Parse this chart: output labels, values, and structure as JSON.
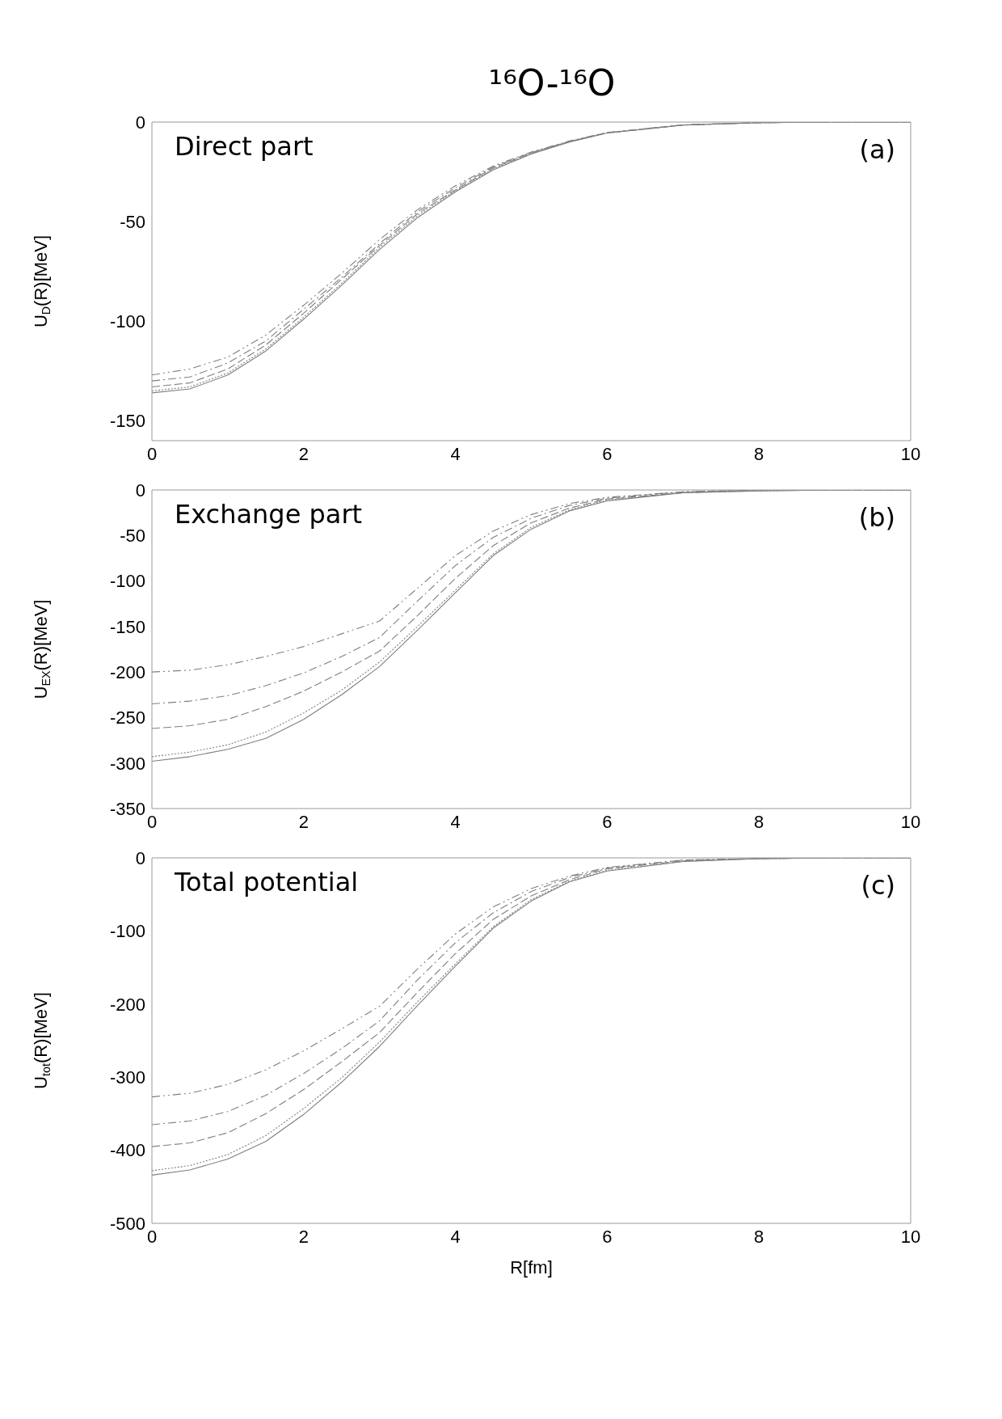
{
  "chart_data": [
    {
      "type": "line",
      "title": "¹⁶O-¹⁶O",
      "ylabel": "U$_{D}$(R)[MeV]",
      "annotations": [
        "Direct part",
        "(a)"
      ],
      "xlim": [
        0,
        10
      ],
      "xticks": [
        0,
        2,
        4,
        6,
        8,
        10
      ],
      "ylim": [
        -160,
        0
      ],
      "yticks": [
        0,
        -50,
        -100,
        -150
      ],
      "grid": false,
      "legend": false,
      "x": [
        0,
        0.5,
        1,
        1.5,
        2,
        2.5,
        3,
        3.5,
        4,
        4.5,
        5,
        5.5,
        6,
        7,
        8,
        9,
        10
      ],
      "series": [
        {
          "color": "#7f7f7f",
          "line_style": "solid",
          "values": [
            -136,
            -134,
            -127,
            -115,
            -99,
            -82,
            -64,
            -48,
            -35,
            -24,
            -16,
            -10,
            -5.5,
            -1.5,
            -0.3,
            0,
            0
          ]
        },
        {
          "color": "#7f7f7f",
          "line_style": "dotted",
          "values": [
            -135,
            -133,
            -126,
            -114,
            -98,
            -81,
            -63,
            -47,
            -34.5,
            -23.5,
            -15.8,
            -10,
            -5.5,
            -1.5,
            -0.3,
            0,
            0
          ]
        },
        {
          "color": "#7f7f7f",
          "line_style": "dashed",
          "values": [
            -133,
            -131,
            -124,
            -112,
            -96,
            -79,
            -62,
            -46,
            -34,
            -23,
            -15.5,
            -9.8,
            -5.4,
            -1.5,
            -0.3,
            0,
            0
          ]
        },
        {
          "color": "#7f7f7f",
          "line_style": "dashed",
          "values": [
            -130,
            -128,
            -121,
            -110,
            -94,
            -78,
            -61,
            -45,
            -33,
            -22.5,
            -15.3,
            -9.7,
            -5.3,
            -1.4,
            -0.3,
            0,
            0
          ]
        },
        {
          "color": "#7f7f7f",
          "line_style": "dashed",
          "values": [
            -127,
            -124,
            -118,
            -107,
            -92,
            -76,
            -59,
            -44,
            -32,
            -22,
            -15,
            -9.5,
            -5.2,
            -1.4,
            -0.3,
            0,
            0
          ]
        }
      ]
    },
    {
      "type": "line",
      "ylabel": "U$_{EX}$(R)[MeV]",
      "annotations": [
        "Exchange part",
        "(b)"
      ],
      "xlim": [
        0,
        10
      ],
      "xticks": [
        0,
        2,
        4,
        6,
        8,
        10
      ],
      "ylim": [
        -350,
        0
      ],
      "yticks": [
        0,
        -50,
        -100,
        -150,
        -200,
        -250,
        -300,
        -350
      ],
      "grid": false,
      "legend": false,
      "x": [
        0,
        0.5,
        1,
        1.5,
        2,
        2.5,
        3,
        3.5,
        4,
        4.5,
        5,
        5.5,
        6,
        7,
        8,
        9,
        10
      ],
      "series": [
        {
          "color": "#7f7f7f",
          "line_style": "solid",
          "values": [
            -298,
            -293,
            -285,
            -273,
            -252,
            -225,
            -194,
            -154,
            -113,
            -72,
            -43,
            -23,
            -12,
            -3,
            -1,
            0,
            0
          ]
        },
        {
          "color": "#7f7f7f",
          "line_style": "dotted",
          "values": [
            -293,
            -288,
            -280,
            -266,
            -245,
            -220,
            -189,
            -150,
            -110,
            -70,
            -41,
            -22,
            -11,
            -3,
            -1,
            0,
            0
          ]
        },
        {
          "color": "#7f7f7f",
          "line_style": "dashed",
          "values": [
            -262,
            -259,
            -252,
            -238,
            -221,
            -200,
            -177,
            -138,
            -97,
            -61,
            -36,
            -20,
            -10,
            -3,
            0,
            0,
            0
          ]
        },
        {
          "color": "#7f7f7f",
          "line_style": "dashed",
          "values": [
            -235,
            -232,
            -226,
            -215,
            -201,
            -183,
            -162,
            -122,
            -83,
            -52,
            -31,
            -17,
            -9,
            -2,
            0,
            0,
            0
          ]
        },
        {
          "color": "#7f7f7f",
          "line_style": "dashed",
          "values": [
            -200,
            -198,
            -192,
            -183,
            -172,
            -158,
            -144,
            -108,
            -72,
            -45,
            -27,
            -15,
            -8,
            -2,
            0,
            0,
            0
          ]
        }
      ]
    },
    {
      "type": "line",
      "xlabel": "R[fm]",
      "ylabel": "U$_{tot}$(R)[MeV]",
      "annotations": [
        "Total potential",
        "(c)"
      ],
      "xlim": [
        0,
        10
      ],
      "xticks": [
        0,
        2,
        4,
        6,
        8,
        10
      ],
      "ylim": [
        -500,
        0
      ],
      "yticks": [
        0,
        -100,
        -200,
        -300,
        -400,
        -500
      ],
      "grid": false,
      "legend": false,
      "x": [
        0,
        0.5,
        1,
        1.5,
        2,
        2.5,
        3,
        3.5,
        4,
        4.5,
        5,
        5.5,
        6,
        7,
        8,
        9,
        10
      ],
      "series": [
        {
          "color": "#7f7f7f",
          "line_style": "solid",
          "values": [
            -434,
            -427,
            -412,
            -388,
            -351,
            -307,
            -258,
            -202,
            -148,
            -96,
            -59,
            -33,
            -18,
            -5,
            -1,
            0,
            0
          ]
        },
        {
          "color": "#7f7f7f",
          "line_style": "dotted",
          "values": [
            -428,
            -421,
            -406,
            -380,
            -343,
            -301,
            -252,
            -197,
            -145,
            -94,
            -57,
            -32,
            -17,
            -5,
            -1,
            0,
            0
          ]
        },
        {
          "color": "#7f7f7f",
          "line_style": "dashed",
          "values": [
            -395,
            -390,
            -376,
            -350,
            -317,
            -279,
            -239,
            -184,
            -131,
            -84,
            -52,
            -30,
            -15,
            -4,
            -1,
            0,
            0
          ]
        },
        {
          "color": "#7f7f7f",
          "line_style": "dashed",
          "values": [
            -365,
            -360,
            -347,
            -325,
            -295,
            -261,
            -223,
            -167,
            -116,
            -75,
            -46,
            -27,
            -14,
            -3,
            -1,
            0,
            0
          ]
        },
        {
          "color": "#7f7f7f",
          "line_style": "dashed",
          "values": [
            -327,
            -322,
            -310,
            -290,
            -264,
            -234,
            -203,
            -152,
            -104,
            -67,
            -42,
            -25,
            -13,
            -3,
            -1,
            0,
            0
          ]
        }
      ]
    }
  ]
}
